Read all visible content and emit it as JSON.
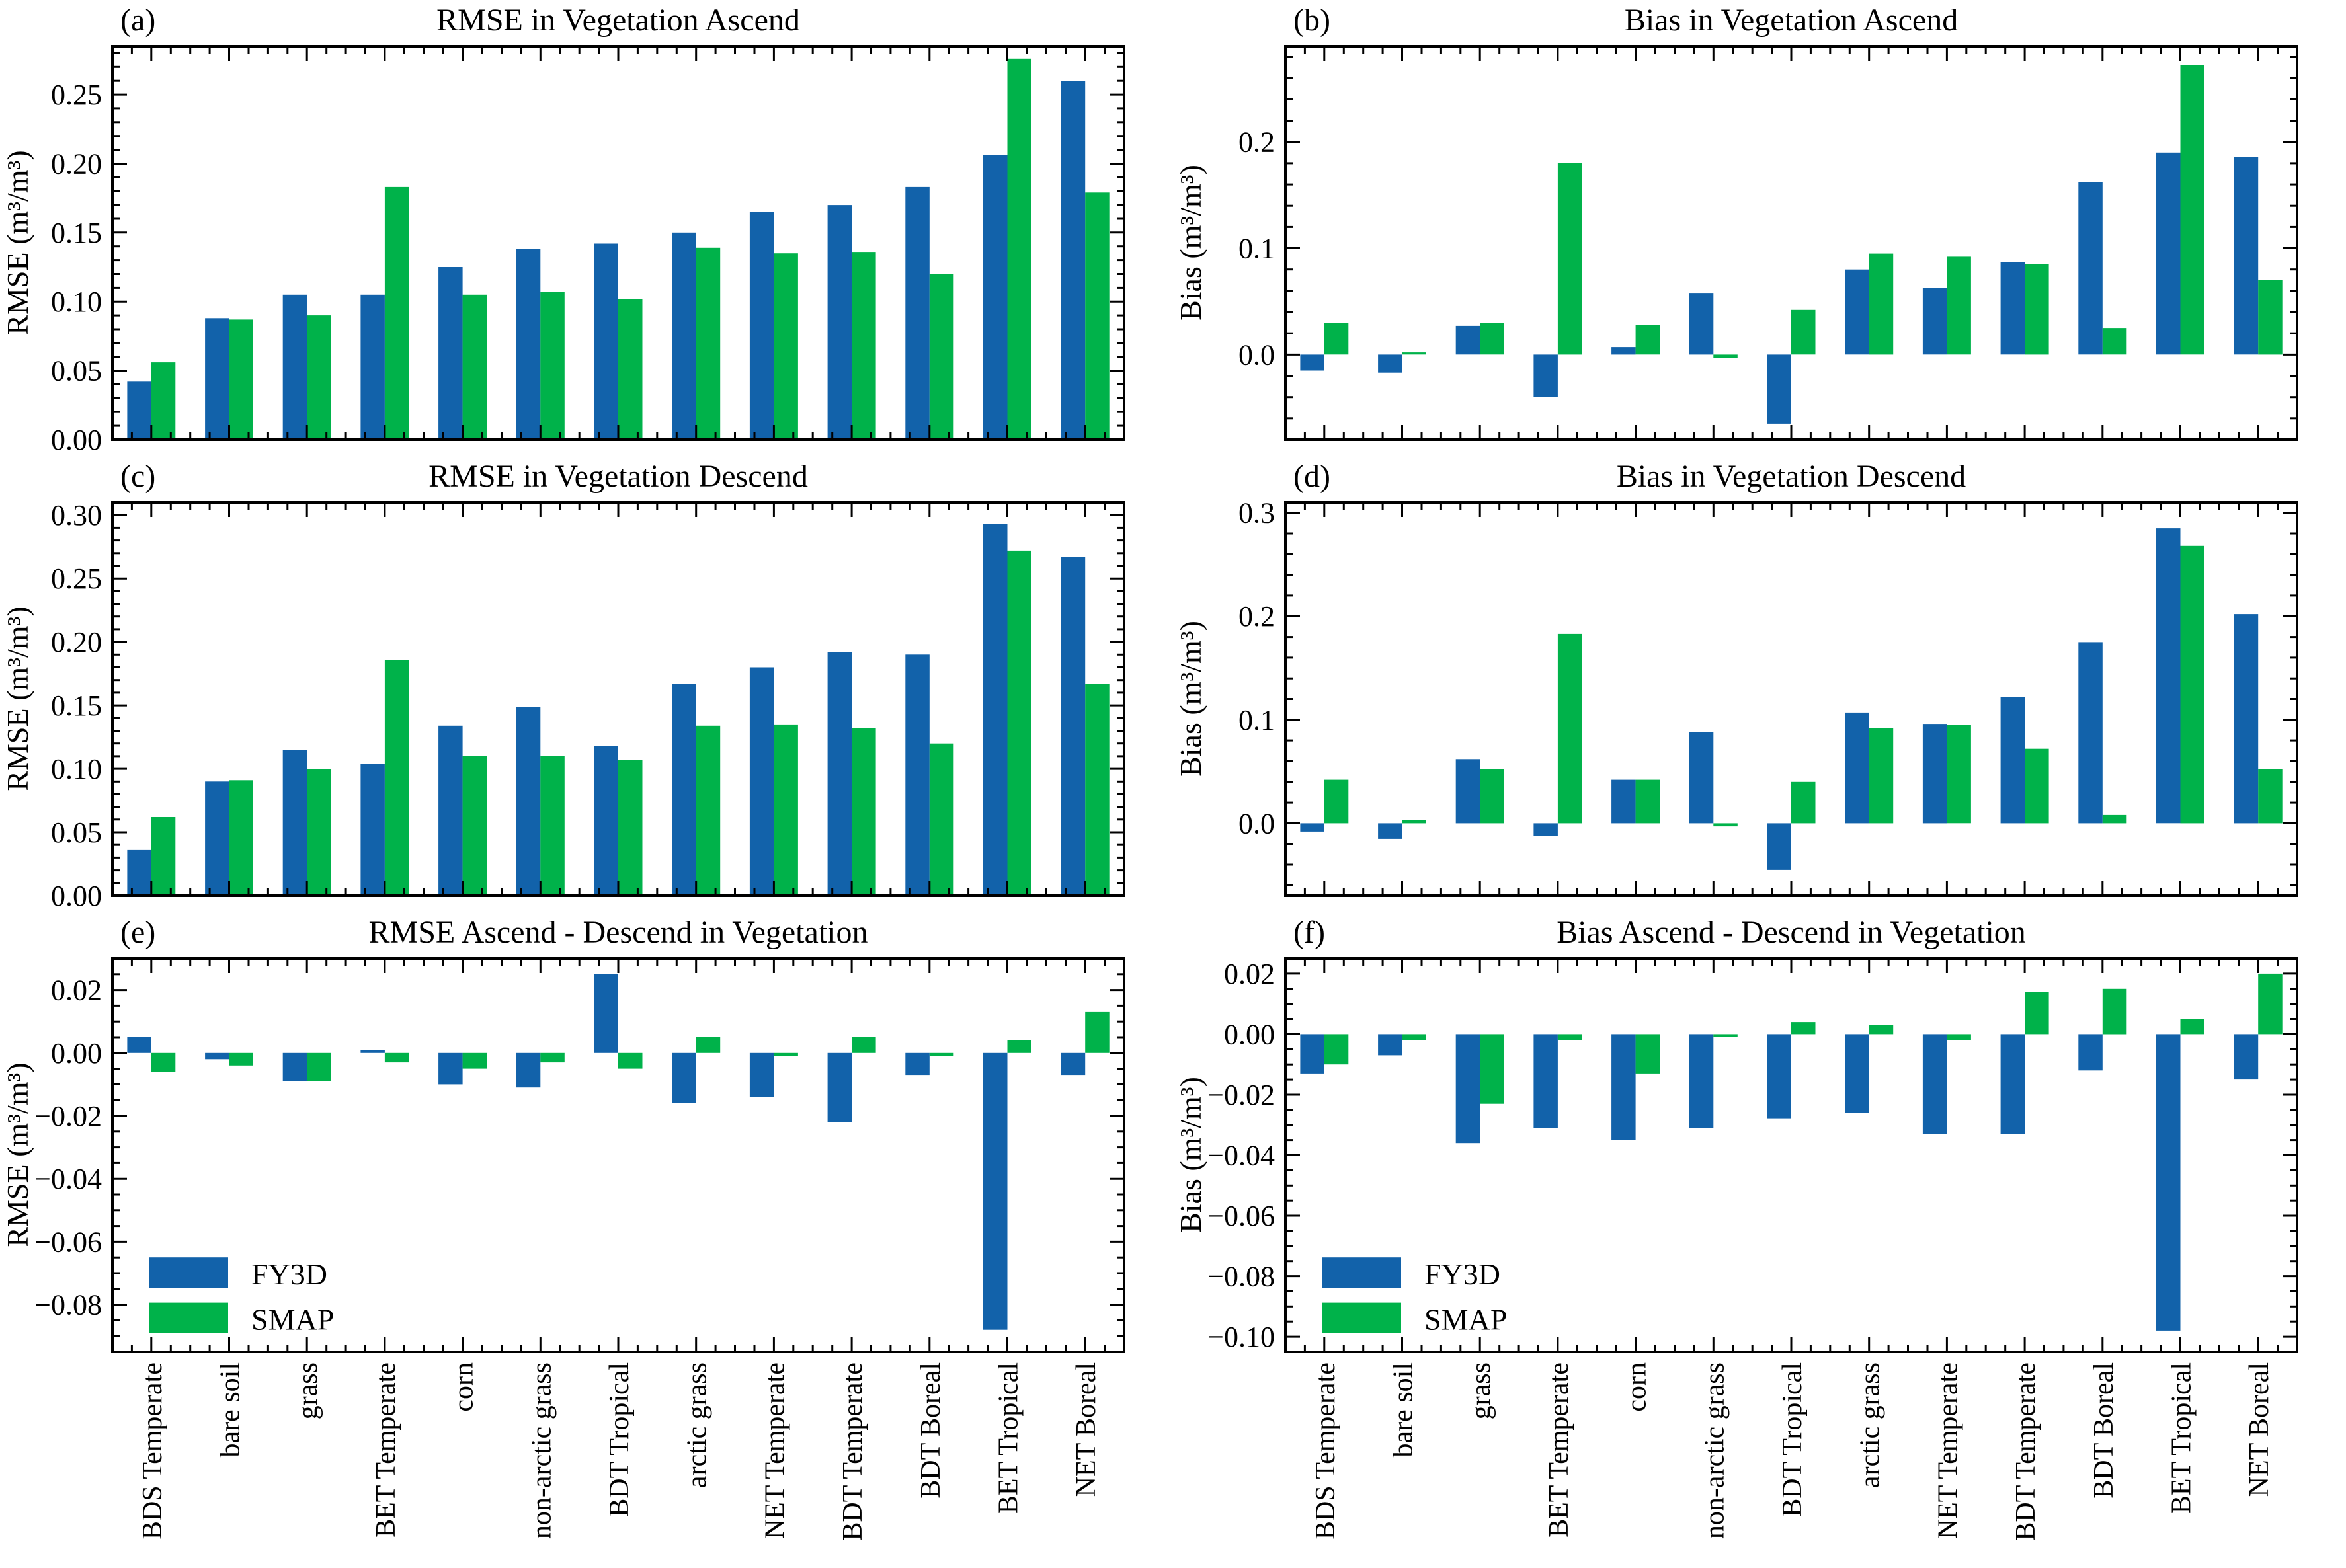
{
  "categories": [
    "BDS Temperate",
    "bare soil",
    "grass",
    "BET Temperate",
    "corn",
    "non-arctic grass",
    "BDT Tropical",
    "arctic grass",
    "NET Temperate",
    "BDT Temperate",
    "BDT Boreal",
    "BET Tropical",
    "NET Boreal"
  ],
  "series_colors": {
    "FY3D": "#1262aa",
    "SMAP": "#00b24a"
  },
  "frame_color": "#000000",
  "legend_items": [
    "FY3D",
    "SMAP"
  ],
  "chart_data": [
    {
      "id": "a",
      "type": "bar",
      "label": "(a)",
      "title": "RMSE in Vegetation Ascend",
      "ylabel": "RMSE (m³/m³)",
      "ylim": [
        0,
        0.285
      ],
      "yticks": [
        0.0,
        0.05,
        0.1,
        0.15,
        0.2,
        0.25
      ],
      "ydecimals": 2,
      "minor_div": 5,
      "grid": false,
      "show_xlabels": false,
      "legend": false,
      "legend_position": "lower left",
      "series": [
        {
          "name": "FY3D",
          "values": [
            0.042,
            0.088,
            0.105,
            0.105,
            0.125,
            0.138,
            0.142,
            0.15,
            0.165,
            0.17,
            0.183,
            0.206,
            0.26
          ]
        },
        {
          "name": "SMAP",
          "values": [
            0.056,
            0.087,
            0.09,
            0.183,
            0.105,
            0.107,
            0.102,
            0.139,
            0.135,
            0.136,
            0.12,
            0.276,
            0.179
          ]
        }
      ]
    },
    {
      "id": "b",
      "type": "bar",
      "label": "(b)",
      "title": "Bias in Vegetation Ascend",
      "ylabel": "Bias (m³/m³)",
      "ylim": [
        -0.08,
        0.29
      ],
      "yticks": [
        0.0,
        0.1,
        0.2
      ],
      "ydecimals": 1,
      "minor_div": 5,
      "grid": false,
      "show_xlabels": false,
      "legend": false,
      "legend_position": "lower left",
      "series": [
        {
          "name": "FY3D",
          "values": [
            -0.015,
            -0.017,
            0.027,
            -0.04,
            0.007,
            0.058,
            -0.065,
            0.08,
            0.063,
            0.087,
            0.162,
            0.19,
            0.186
          ]
        },
        {
          "name": "SMAP",
          "values": [
            0.03,
            0.002,
            0.03,
            0.18,
            0.028,
            -0.003,
            0.042,
            0.095,
            0.092,
            0.085,
            0.025,
            0.272,
            0.07
          ]
        }
      ]
    },
    {
      "id": "c",
      "type": "bar",
      "label": "(c)",
      "title": "RMSE in Vegetation Descend",
      "ylabel": "RMSE (m³/m³)",
      "ylim": [
        0,
        0.31
      ],
      "yticks": [
        0.0,
        0.05,
        0.1,
        0.15,
        0.2,
        0.25,
        0.3
      ],
      "ydecimals": 2,
      "minor_div": 5,
      "grid": false,
      "show_xlabels": false,
      "legend": false,
      "legend_position": "lower left",
      "series": [
        {
          "name": "FY3D",
          "values": [
            0.036,
            0.09,
            0.115,
            0.104,
            0.134,
            0.149,
            0.118,
            0.167,
            0.18,
            0.192,
            0.19,
            0.293,
            0.267
          ]
        },
        {
          "name": "SMAP",
          "values": [
            0.062,
            0.091,
            0.1,
            0.186,
            0.11,
            0.11,
            0.107,
            0.134,
            0.135,
            0.132,
            0.12,
            0.272,
            0.167
          ]
        }
      ]
    },
    {
      "id": "d",
      "type": "bar",
      "label": "(d)",
      "title": "Bias in Vegetation Descend",
      "ylabel": "Bias (m³/m³)",
      "ylim": [
        -0.07,
        0.31
      ],
      "yticks": [
        0.0,
        0.1,
        0.2,
        0.3
      ],
      "ydecimals": 1,
      "minor_div": 5,
      "grid": false,
      "show_xlabels": false,
      "legend": false,
      "legend_position": "lower left",
      "series": [
        {
          "name": "FY3D",
          "values": [
            -0.008,
            -0.015,
            0.062,
            -0.012,
            0.042,
            0.088,
            -0.045,
            0.107,
            0.096,
            0.122,
            0.175,
            0.285,
            0.202
          ]
        },
        {
          "name": "SMAP",
          "values": [
            0.042,
            0.003,
            0.052,
            0.183,
            0.042,
            -0.003,
            0.04,
            0.092,
            0.095,
            0.072,
            0.008,
            0.268,
            0.052
          ]
        }
      ]
    },
    {
      "id": "e",
      "type": "bar",
      "label": "(e)",
      "title": "RMSE Ascend - Descend in Vegetation",
      "ylabel": "RMSE (m³/m³)",
      "ylim": [
        -0.095,
        0.03
      ],
      "yticks": [
        0.02,
        0.0,
        -0.02,
        -0.04,
        -0.06,
        -0.08
      ],
      "ydecimals": 2,
      "minor_div": 4,
      "grid": false,
      "show_xlabels": true,
      "legend": true,
      "legend_position": "lower left",
      "series": [
        {
          "name": "FY3D",
          "values": [
            0.005,
            -0.002,
            -0.009,
            0.001,
            -0.01,
            -0.011,
            0.025,
            -0.016,
            -0.014,
            -0.022,
            -0.007,
            -0.088,
            -0.007
          ]
        },
        {
          "name": "SMAP",
          "values": [
            -0.006,
            -0.004,
            -0.009,
            -0.003,
            -0.005,
            -0.003,
            -0.005,
            0.005,
            -0.001,
            0.005,
            -0.001,
            0.004,
            0.013
          ]
        }
      ]
    },
    {
      "id": "f",
      "type": "bar",
      "label": "(f)",
      "title": "Bias Ascend - Descend in Vegetation",
      "ylabel": "Bias (m³/m³)",
      "ylim": [
        -0.105,
        0.025
      ],
      "yticks": [
        0.02,
        0.0,
        -0.02,
        -0.04,
        -0.06,
        -0.08,
        -0.1
      ],
      "ydecimals": 2,
      "minor_div": 4,
      "grid": false,
      "show_xlabels": true,
      "legend": true,
      "legend_position": "lower left",
      "series": [
        {
          "name": "FY3D",
          "values": [
            -0.013,
            -0.007,
            -0.036,
            -0.031,
            -0.035,
            -0.031,
            -0.028,
            -0.026,
            -0.033,
            -0.033,
            -0.012,
            -0.098,
            -0.015
          ]
        },
        {
          "name": "SMAP",
          "values": [
            -0.01,
            -0.002,
            -0.023,
            -0.002,
            -0.013,
            -0.001,
            0.004,
            0.003,
            -0.002,
            0.014,
            0.015,
            0.005,
            0.02
          ]
        }
      ]
    }
  ]
}
